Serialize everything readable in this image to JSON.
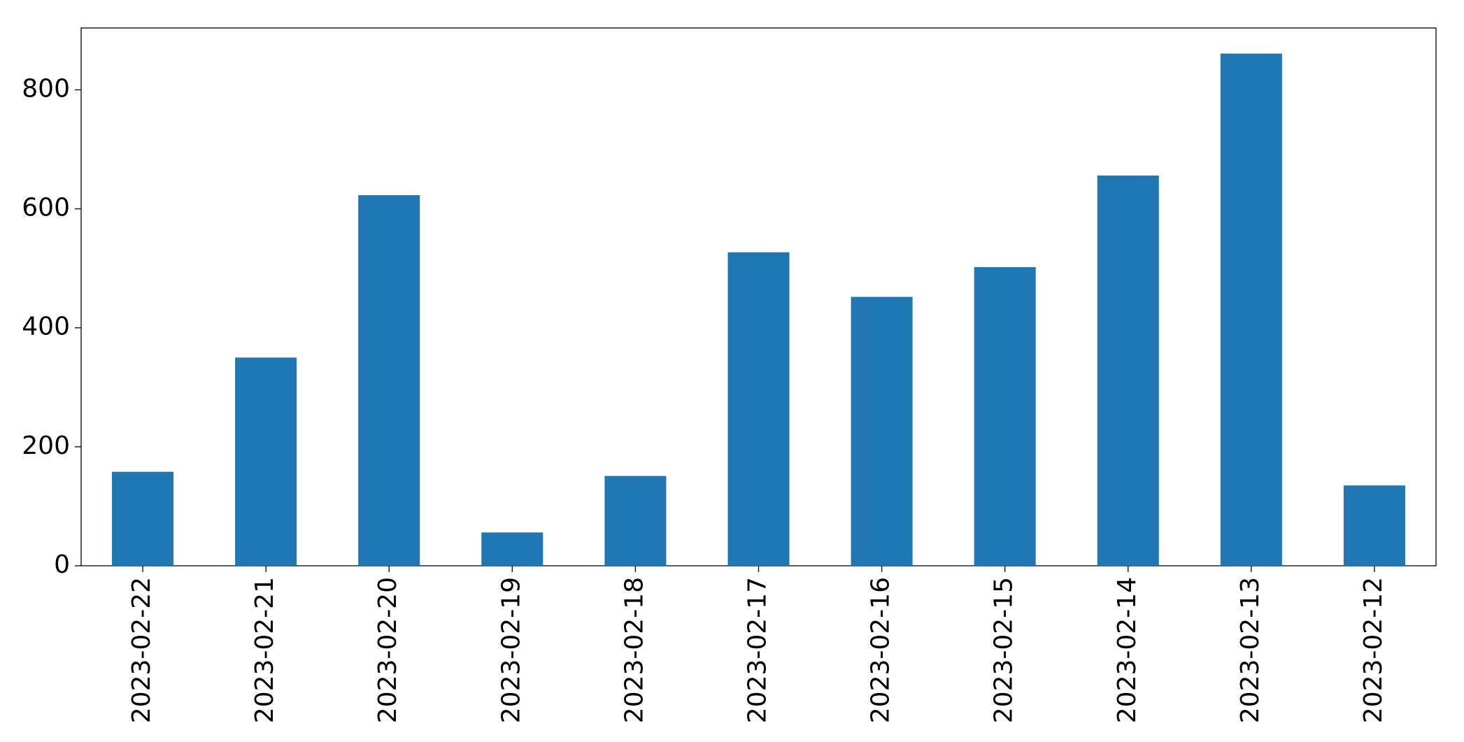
{
  "chart_data": {
    "type": "bar",
    "categories": [
      "2023-02-22",
      "2023-02-21",
      "2023-02-20",
      "2023-02-19",
      "2023-02-18",
      "2023-02-17",
      "2023-02-16",
      "2023-02-15",
      "2023-02-14",
      "2023-02-13",
      "2023-02-12"
    ],
    "values": [
      158,
      350,
      623,
      56,
      151,
      527,
      452,
      502,
      656,
      861,
      135
    ],
    "color": "#1f77b4",
    "ylim": [
      0,
      904
    ],
    "yticks": [
      0,
      200,
      400,
      600,
      800
    ],
    "grid": false
  }
}
